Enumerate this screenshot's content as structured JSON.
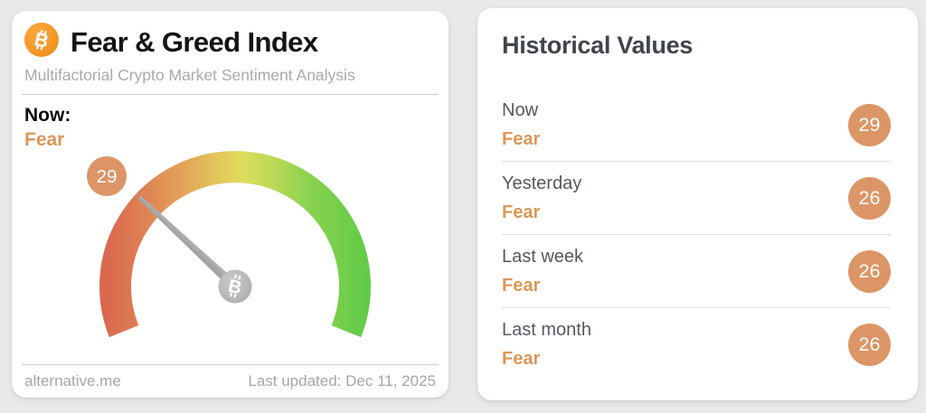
{
  "left_card": {
    "logo": "bitcoin-icon",
    "title": "Fear & Greed Index",
    "subtitle": "Multifactorial Crypto Market Sentiment Analysis",
    "now_label": "Now:",
    "now_classification": "Fear",
    "gauge": {
      "value": 29,
      "min": 0,
      "max": 100,
      "classification": "Fear"
    },
    "footer": {
      "source": "alternative.me",
      "last_updated": "Last updated: Dec 11, 2025"
    }
  },
  "right_card": {
    "title": "Historical Values",
    "rows": [
      {
        "label": "Now",
        "sentiment": "Fear",
        "value": 29
      },
      {
        "label": "Yesterday",
        "sentiment": "Fear",
        "value": 26
      },
      {
        "label": "Last week",
        "sentiment": "Fear",
        "value": 26
      },
      {
        "label": "Last month",
        "sentiment": "Fear",
        "value": 26
      }
    ]
  },
  "colors": {
    "accent_orange": "#dd9757",
    "badge_orange": "#dc9566",
    "bitcoin_orange": "#f7931a",
    "gauge_red": "#d9684f",
    "gauge_orange": "#e3a458",
    "gauge_yellow": "#dfdc5c",
    "gauge_green": "#63cb47",
    "needle_gray": "#a8a8a8",
    "page_background": "#e9e9e9"
  },
  "chart_data": {
    "type": "gauge",
    "title": "Fear & Greed Index",
    "value": 29,
    "min": 0,
    "max": 100,
    "classification": "Fear",
    "history": [
      {
        "period": "Now",
        "classification": "Fear",
        "value": 29
      },
      {
        "period": "Yesterday",
        "classification": "Fear",
        "value": 26
      },
      {
        "period": "Last week",
        "classification": "Fear",
        "value": 26
      },
      {
        "period": "Last month",
        "classification": "Fear",
        "value": 26
      }
    ]
  }
}
